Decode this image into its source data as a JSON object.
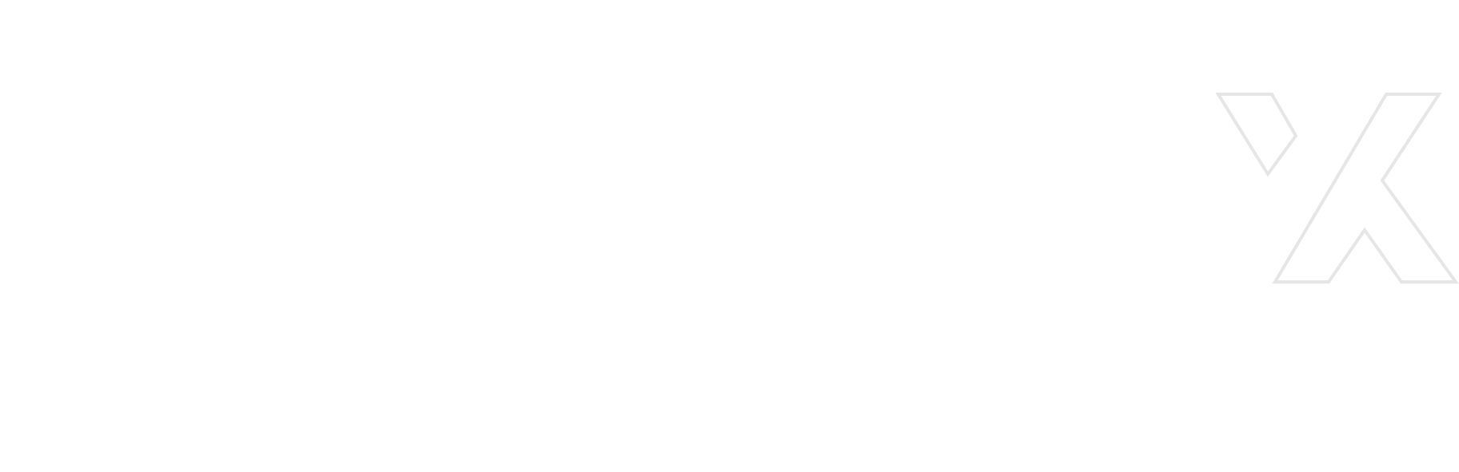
{
  "canvas": {
    "background": "#ffffff"
  },
  "logo": {
    "icon": "x-letter-outline-icon",
    "stroke_color": "#e6e6e6"
  }
}
